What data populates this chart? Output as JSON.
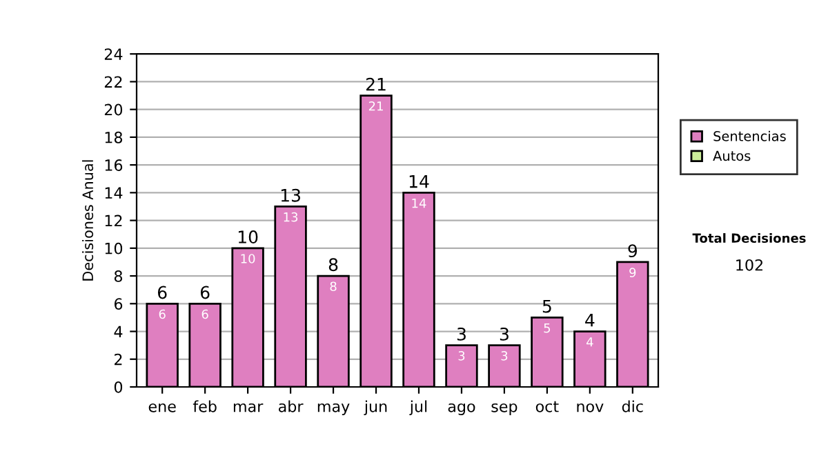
{
  "chart_data": {
    "type": "bar",
    "stacked": true,
    "ylabel": "Decisiones Anual",
    "categories": [
      "ene",
      "feb",
      "mar",
      "abr",
      "may",
      "jun",
      "jul",
      "ago",
      "sep",
      "oct",
      "nov",
      "dic"
    ],
    "series": [
      {
        "name": "Sentencias",
        "color": "#df7fc0",
        "values": [
          6,
          6,
          10,
          13,
          8,
          21,
          14,
          3,
          3,
          5,
          4,
          9
        ],
        "value_labels": [
          "6",
          "6",
          "10",
          "13",
          "8",
          "21",
          "14",
          "3",
          "3",
          "5",
          "4",
          "9"
        ]
      },
      {
        "name": "Autos",
        "color": "#ccee99",
        "values": [
          null,
          null,
          null,
          null,
          null,
          null,
          null,
          null,
          null,
          null,
          null,
          null
        ]
      }
    ],
    "totals": [
      "6",
      "6",
      "10",
      "13",
      "8",
      "21",
      "14",
      "3",
      "3",
      "5",
      "4",
      "9"
    ],
    "ylim": [
      0,
      24
    ],
    "yticks": [
      0,
      2,
      4,
      6,
      8,
      10,
      12,
      14,
      16,
      18,
      20,
      22,
      24
    ],
    "grid": "y",
    "legend": "right",
    "annotations": [
      "Total Decisiones",
      "102"
    ]
  }
}
